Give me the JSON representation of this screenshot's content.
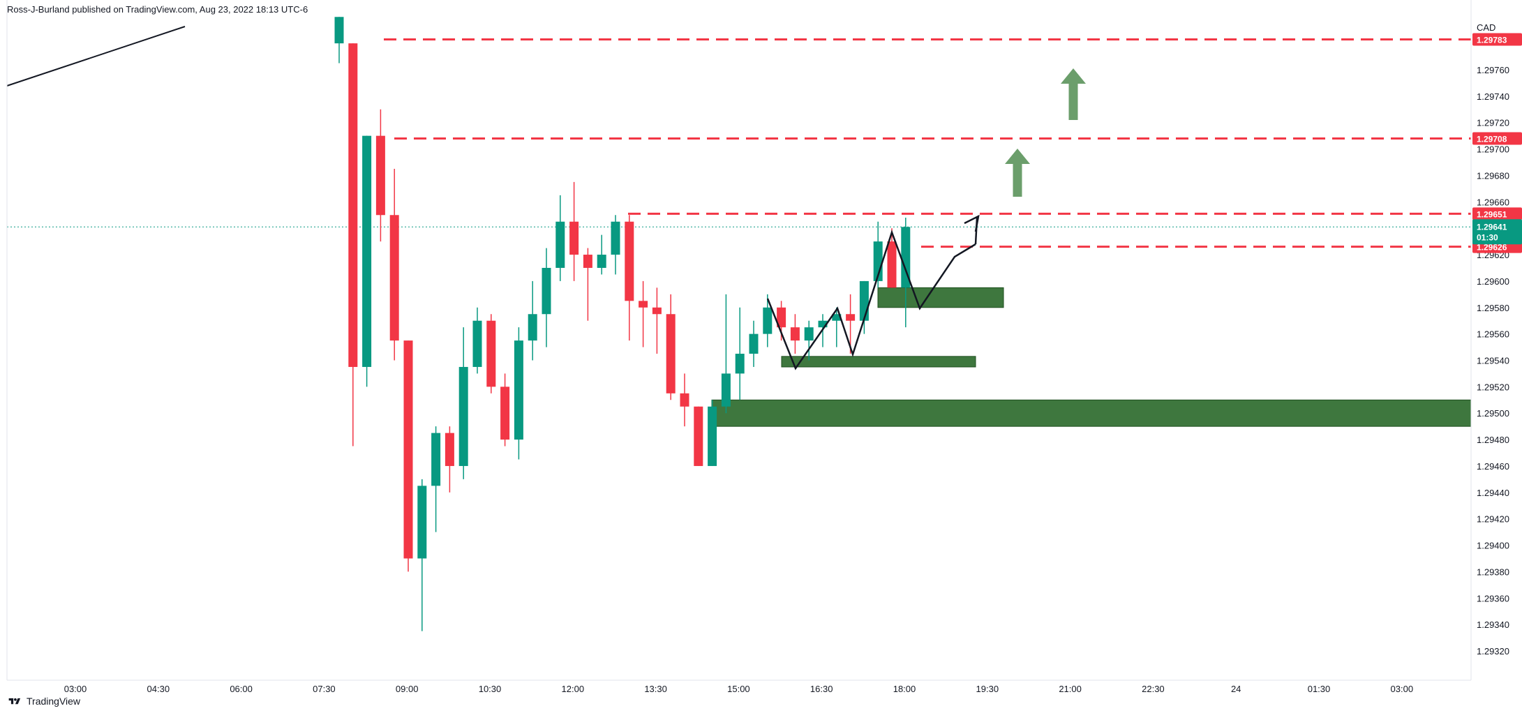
{
  "header": {
    "publisher": "Ross-J-Burland published on TradingView.com, Aug 23, 2022 18:13 UTC-6"
  },
  "footer": {
    "brand": "TradingView",
    "logo_icon": "tradingview-logo-icon"
  },
  "colors": {
    "bull": "#089981",
    "bear": "#f23645",
    "zone": "#2e6b2e",
    "arrow": "#6b9e6b",
    "dashed": "#f23645",
    "drawing": "#131722",
    "current": "#089981"
  },
  "chart_data": {
    "type": "candlestick",
    "currency": "CAD",
    "ylim": [
      1.2931,
      1.2979
    ],
    "y_ticks": [
      "1.29760",
      "1.29740",
      "1.29720",
      "1.29700",
      "1.29680",
      "1.29660",
      "1.29620",
      "1.29600",
      "1.29580",
      "1.29560",
      "1.29540",
      "1.29520",
      "1.29500",
      "1.29480",
      "1.29460",
      "1.29440",
      "1.29420",
      "1.29400",
      "1.29380",
      "1.29360",
      "1.29340",
      "1.29320"
    ],
    "x_ticks": [
      "03:00",
      "04:30",
      "06:00",
      "07:30",
      "09:00",
      "10:30",
      "12:00",
      "13:30",
      "15:00",
      "16:30",
      "18:00",
      "19:30",
      "21:00",
      "22:30",
      "24",
      "01:30",
      "03:00"
    ],
    "candles": [
      {
        "o": 1.2978,
        "h": 1.298,
        "l": 1.29765,
        "c": 1.298
      },
      {
        "o": 1.2978,
        "h": 1.2978,
        "l": 1.29475,
        "c": 1.29535
      },
      {
        "o": 1.29535,
        "h": 1.2971,
        "l": 1.2952,
        "c": 1.2971
      },
      {
        "o": 1.2971,
        "h": 1.2973,
        "l": 1.2963,
        "c": 1.2965
      },
      {
        "o": 1.2965,
        "h": 1.29685,
        "l": 1.2954,
        "c": 1.29555
      },
      {
        "o": 1.29555,
        "h": 1.29555,
        "l": 1.2938,
        "c": 1.2939
      },
      {
        "o": 1.2939,
        "h": 1.2945,
        "l": 1.29335,
        "c": 1.29445
      },
      {
        "o": 1.29445,
        "h": 1.2949,
        "l": 1.2941,
        "c": 1.29485
      },
      {
        "o": 1.29485,
        "h": 1.2949,
        "l": 1.2944,
        "c": 1.2946
      },
      {
        "o": 1.2946,
        "h": 1.29565,
        "l": 1.2945,
        "c": 1.29535
      },
      {
        "o": 1.29535,
        "h": 1.2958,
        "l": 1.2953,
        "c": 1.2957
      },
      {
        "o": 1.2957,
        "h": 1.29575,
        "l": 1.29515,
        "c": 1.2952
      },
      {
        "o": 1.2952,
        "h": 1.2953,
        "l": 1.29475,
        "c": 1.2948
      },
      {
        "o": 1.2948,
        "h": 1.29565,
        "l": 1.29465,
        "c": 1.29555
      },
      {
        "o": 1.29555,
        "h": 1.296,
        "l": 1.2954,
        "c": 1.29575
      },
      {
        "o": 1.29575,
        "h": 1.29625,
        "l": 1.2955,
        "c": 1.2961
      },
      {
        "o": 1.2961,
        "h": 1.29665,
        "l": 1.296,
        "c": 1.29645
      },
      {
        "o": 1.29645,
        "h": 1.29675,
        "l": 1.296,
        "c": 1.2962
      },
      {
        "o": 1.2962,
        "h": 1.29625,
        "l": 1.2957,
        "c": 1.2961
      },
      {
        "o": 1.2961,
        "h": 1.29635,
        "l": 1.29605,
        "c": 1.2962
      },
      {
        "o": 1.2962,
        "h": 1.2965,
        "l": 1.29605,
        "c": 1.29645
      },
      {
        "o": 1.29645,
        "h": 1.2965,
        "l": 1.29555,
        "c": 1.29585
      },
      {
        "o": 1.29585,
        "h": 1.296,
        "l": 1.2955,
        "c": 1.2958
      },
      {
        "o": 1.2958,
        "h": 1.29595,
        "l": 1.29545,
        "c": 1.29575
      },
      {
        "o": 1.29575,
        "h": 1.2959,
        "l": 1.2951,
        "c": 1.29515
      },
      {
        "o": 1.29515,
        "h": 1.2953,
        "l": 1.2949,
        "c": 1.29505
      },
      {
        "o": 1.29505,
        "h": 1.29505,
        "l": 1.2946,
        "c": 1.2946
      },
      {
        "o": 1.2946,
        "h": 1.2951,
        "l": 1.2946,
        "c": 1.29505
      },
      {
        "o": 1.29505,
        "h": 1.2959,
        "l": 1.295,
        "c": 1.2953
      },
      {
        "o": 1.2953,
        "h": 1.2958,
        "l": 1.2951,
        "c": 1.29545
      },
      {
        "o": 1.29545,
        "h": 1.2957,
        "l": 1.29535,
        "c": 1.2956
      },
      {
        "o": 1.2956,
        "h": 1.2959,
        "l": 1.2955,
        "c": 1.2958
      },
      {
        "o": 1.2958,
        "h": 1.29585,
        "l": 1.29555,
        "c": 1.29565
      },
      {
        "o": 1.29565,
        "h": 1.29575,
        "l": 1.29545,
        "c": 1.29555
      },
      {
        "o": 1.29555,
        "h": 1.2957,
        "l": 1.2954,
        "c": 1.29565
      },
      {
        "o": 1.29565,
        "h": 1.29575,
        "l": 1.2955,
        "c": 1.2957
      },
      {
        "o": 1.2957,
        "h": 1.2958,
        "l": 1.2955,
        "c": 1.29575
      },
      {
        "o": 1.29575,
        "h": 1.2959,
        "l": 1.29545,
        "c": 1.2957
      },
      {
        "o": 1.2957,
        "h": 1.296,
        "l": 1.2956,
        "c": 1.296
      },
      {
        "o": 1.296,
        "h": 1.29645,
        "l": 1.29595,
        "c": 1.2963
      },
      {
        "o": 1.2963,
        "h": 1.2964,
        "l": 1.29595,
        "c": 1.29595
      },
      {
        "o": 1.29595,
        "h": 1.29648,
        "l": 1.29565,
        "c": 1.29641
      }
    ],
    "horizontal_levels": [
      {
        "price": 1.29783,
        "label": "1.29783"
      },
      {
        "price": 1.29708,
        "label": "1.29708"
      },
      {
        "price": 1.29651,
        "label": "1.29651"
      },
      {
        "price": 1.29626,
        "label": "1.29626"
      }
    ],
    "current_price": {
      "price": 1.29641,
      "label": "1.29641",
      "countdown": "01:30"
    },
    "zones": [
      {
        "top": 1.2951,
        "bottom": 1.2949
      },
      {
        "top": 1.29543,
        "bottom": 1.29535
      },
      {
        "top": 1.29595,
        "bottom": 1.2958
      }
    ]
  }
}
